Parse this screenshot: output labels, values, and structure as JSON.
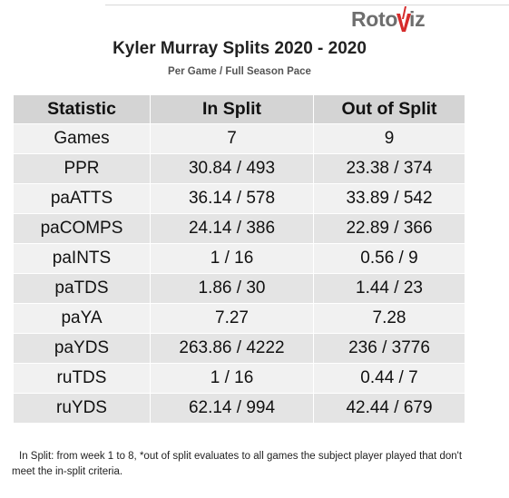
{
  "logo": {
    "left_text": "Roto",
    "right_text": "iz",
    "accent_color": "#d62b2b"
  },
  "title": "Kyler Murray Splits 2020 - 2020",
  "subtitle": "Per Game / Full Season Pace",
  "table": {
    "headers": [
      "Statistic",
      "In Split",
      "Out of Split"
    ],
    "rows": [
      [
        "Games",
        "7",
        "9"
      ],
      [
        "PPR",
        "30.84 / 493",
        "23.38 / 374"
      ],
      [
        "paATTS",
        "36.14 / 578",
        "33.89 / 542"
      ],
      [
        "paCOMPS",
        "24.14 / 386",
        "22.89 / 366"
      ],
      [
        "paINTS",
        "1 / 16",
        "0.56 / 9"
      ],
      [
        "paTDS",
        "1.86 / 30",
        "1.44 / 23"
      ],
      [
        "paYA",
        "7.27",
        "7.28"
      ],
      [
        "paYDS",
        "263.86 / 4222",
        "236 / 3776"
      ],
      [
        "ruTDS",
        "1 / 16",
        "0.44 / 7"
      ],
      [
        "ruYDS",
        "62.14 / 994",
        "42.44 / 679"
      ]
    ]
  },
  "footnote": "In Split: from week 1 to 8,  *out of split evaluates to all games the subject player played that don't meet the in-split criteria."
}
